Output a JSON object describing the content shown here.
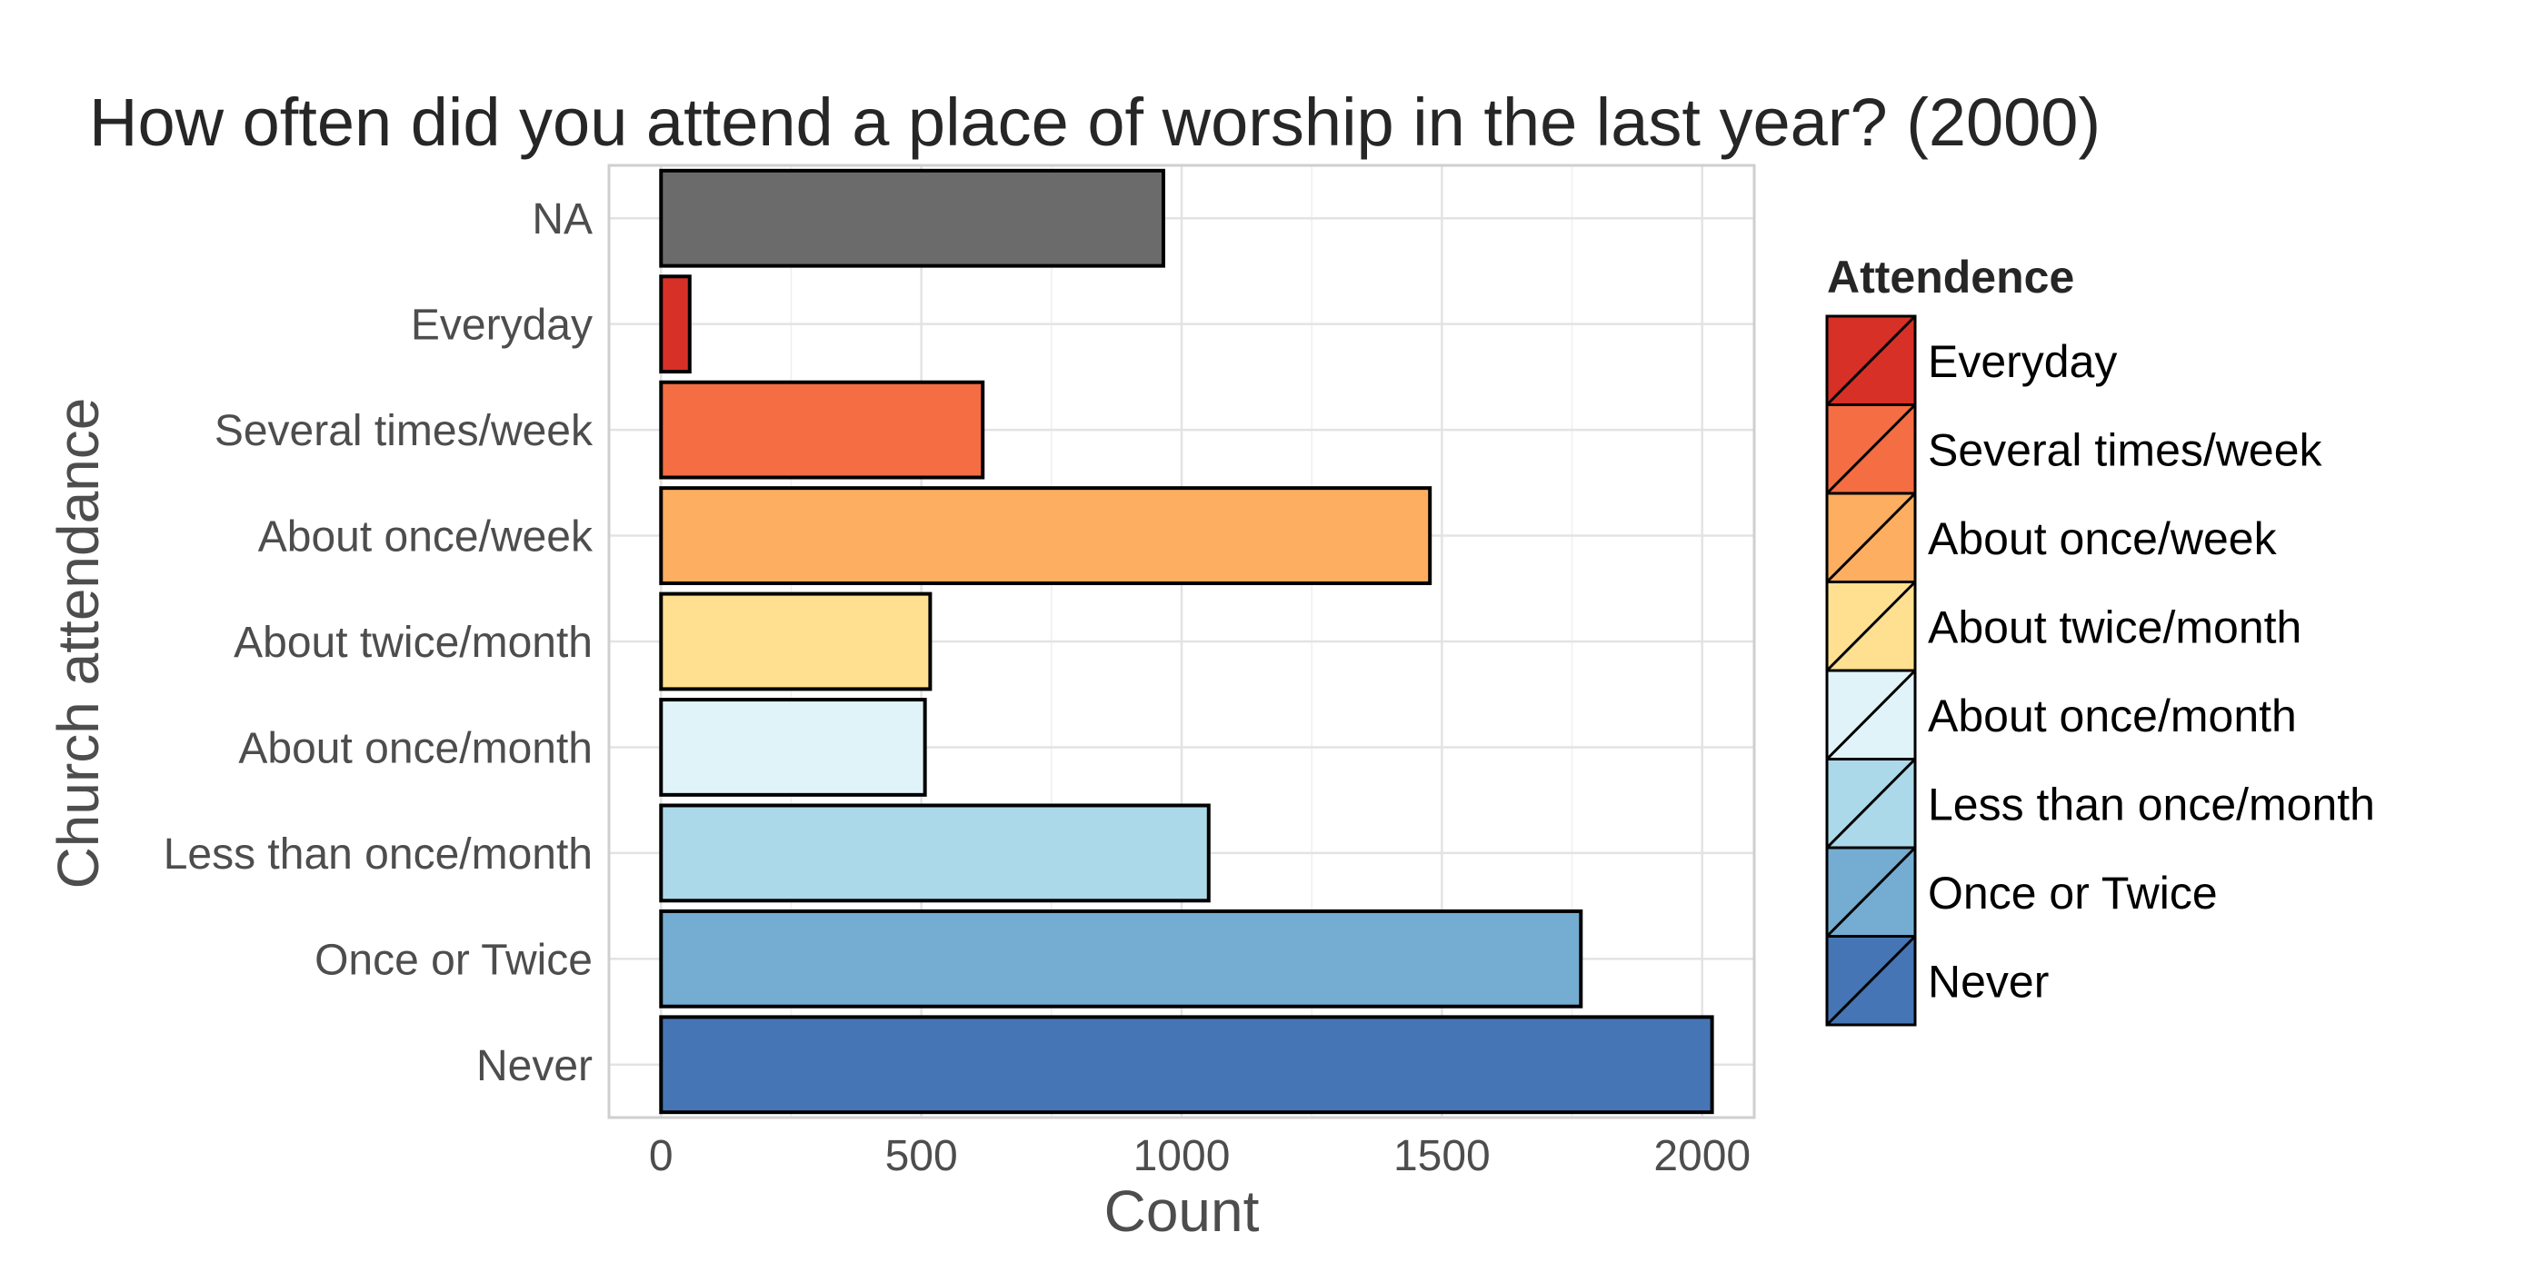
{
  "chart_data": {
    "type": "bar",
    "orientation": "horizontal",
    "title": "How often did you attend a place of worship in the last year? (2000)",
    "xlabel": "Count",
    "ylabel": "Church attendance",
    "xlim": [
      -100,
      2100
    ],
    "x_ticks": [
      0,
      500,
      1000,
      1500,
      2000
    ],
    "x_tick_labels": [
      "0",
      "500",
      "1000",
      "1500",
      "2000"
    ],
    "grid": true,
    "categories": [
      "NA",
      "Everyday",
      "Several times/week",
      "About once/week",
      "About twice/month",
      "About once/month",
      "Less than once/month",
      "Once or Twice",
      "Never"
    ],
    "values": [
      965,
      55,
      618,
      1477,
      517,
      507,
      1052,
      1767,
      2019
    ],
    "colors": [
      "#6b6b6b",
      "#d73027",
      "#f46d43",
      "#fdae61",
      "#fee090",
      "#e0f3f8",
      "#abd9e9",
      "#74add1",
      "#4575b4"
    ],
    "legend": {
      "title": "Attendence",
      "position": "right",
      "items": [
        {
          "label": "Everyday",
          "color": "#d73027"
        },
        {
          "label": "Several times/week",
          "color": "#f46d43"
        },
        {
          "label": "About once/week",
          "color": "#fdae61"
        },
        {
          "label": "About twice/month",
          "color": "#fee090"
        },
        {
          "label": "About once/month",
          "color": "#e0f3f8"
        },
        {
          "label": "Less than once/month",
          "color": "#abd9e9"
        },
        {
          "label": "Once or Twice",
          "color": "#74add1"
        },
        {
          "label": "Never",
          "color": "#4575b4"
        }
      ]
    }
  }
}
